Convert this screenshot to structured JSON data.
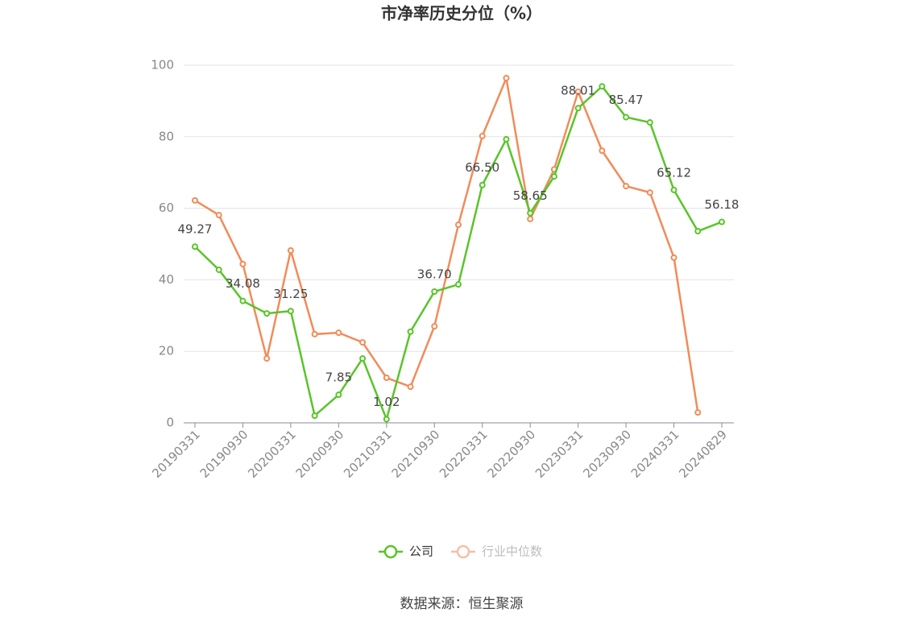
{
  "chart_data": {
    "type": "line",
    "title": "市净率历史分位（%）",
    "categories": [
      "20190331",
      null,
      "20190930",
      null,
      "20200331",
      null,
      "20200930",
      null,
      "20210331",
      null,
      "20210930",
      null,
      "20220331",
      null,
      "20220930",
      null,
      "20230331",
      null,
      "20230930",
      null,
      "20240331",
      null,
      "20240829"
    ],
    "series": [
      {
        "name": "公司",
        "color": "#5ac42a",
        "values": [
          49.27,
          42.8,
          34.08,
          30.6,
          31.25,
          2.0,
          7.85,
          18.0,
          1.02,
          25.5,
          36.7,
          38.7,
          66.5,
          79.3,
          58.65,
          68.9,
          88.01,
          94.1,
          85.47,
          84.0,
          65.12,
          53.6,
          56.18
        ],
        "value_labels": [
          "49.27",
          null,
          "34.08",
          null,
          "31.25",
          null,
          "7.85",
          null,
          "1.02",
          null,
          "36.70",
          null,
          "66.50",
          null,
          "58.65",
          null,
          "88.01",
          null,
          "85.47",
          null,
          "65.12",
          null,
          "56.18"
        ]
      },
      {
        "name": "行业中位数",
        "color": "#f08c5a",
        "values": [
          62.2,
          58.1,
          44.4,
          18.0,
          48.2,
          24.8,
          25.2,
          22.5,
          12.6,
          10.1,
          27.0,
          55.4,
          80.2,
          96.4,
          57.0,
          70.9,
          92.6,
          76.1,
          66.2,
          64.4,
          46.2,
          2.9,
          null
        ]
      }
    ],
    "ylim": [
      0,
      100
    ],
    "yticks": [
      0,
      20,
      40,
      60,
      80,
      100
    ],
    "grid": true,
    "legend": "bottom",
    "source": "数据来源：恒生聚源"
  }
}
